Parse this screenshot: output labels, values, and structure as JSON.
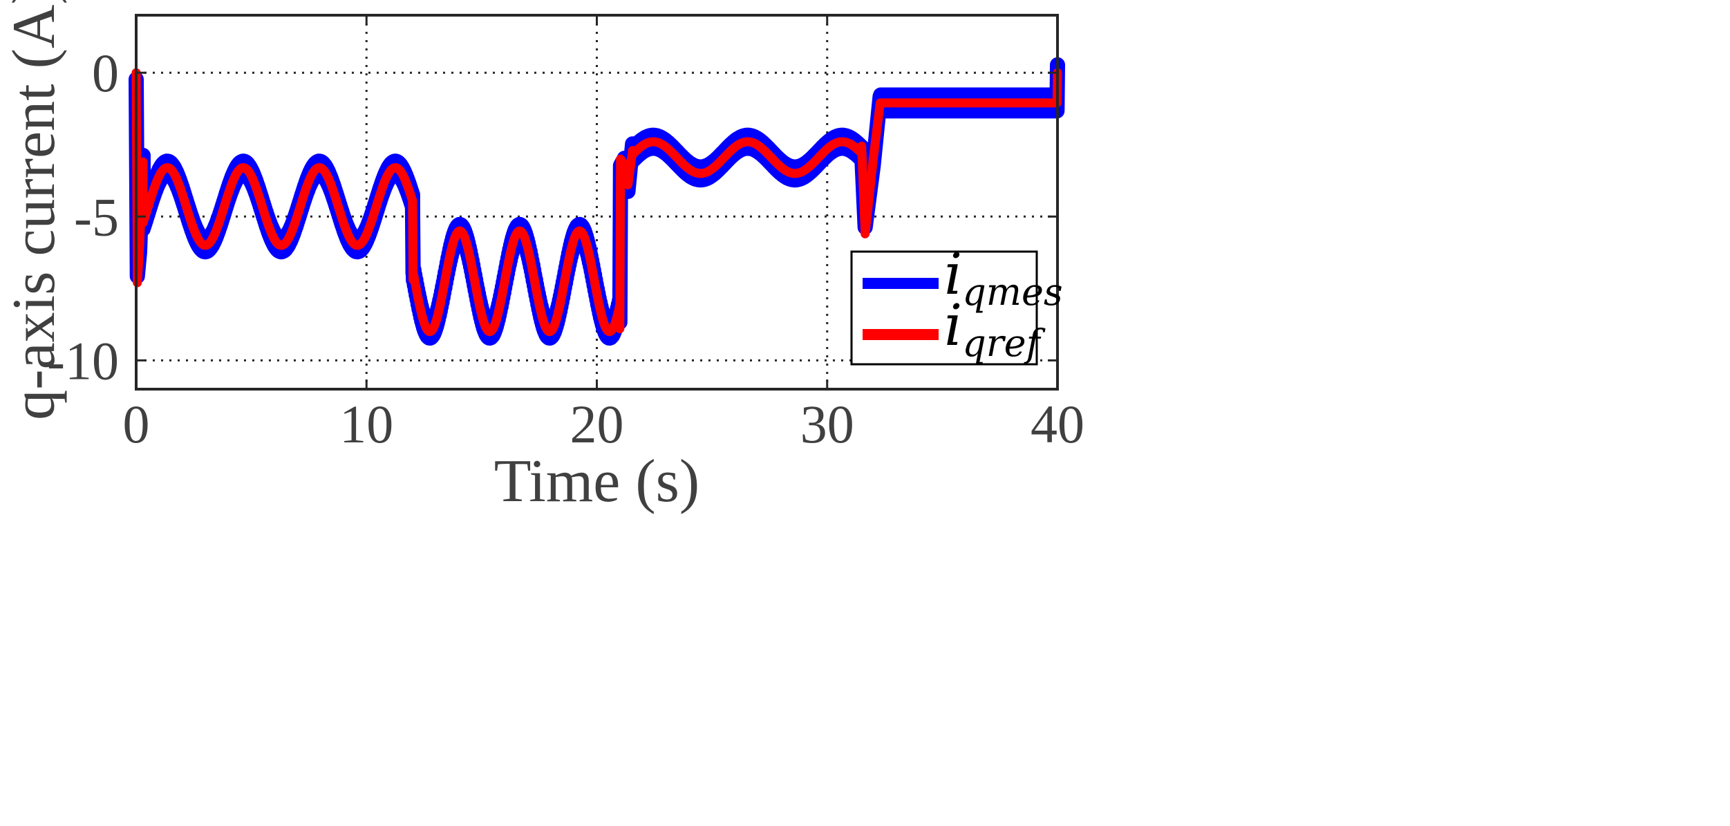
{
  "chart_data": {
    "type": "line",
    "title": "",
    "xlabel": "Time (s)",
    "ylabel": "q-axis current (A)",
    "xlim": [
      0,
      40
    ],
    "ylim": [
      -11,
      2
    ],
    "xticks": [
      0,
      10,
      20,
      30,
      40
    ],
    "xtick_labels": [
      "0",
      "10",
      "20",
      "30",
      "40"
    ],
    "yticks": [
      0,
      -5,
      -10
    ],
    "ytick_labels": [
      "0",
      "-5",
      "-10"
    ],
    "grid": true,
    "legend_position": "bottom-right",
    "series": [
      {
        "name": "i_qmes",
        "legend_base": "i",
        "legend_sub": "qmes",
        "color": "#0000ff",
        "ripple_band": 0.45,
        "ripple_band_final": 0.55
      },
      {
        "name": "i_qref",
        "legend_base": "i",
        "legend_sub": "qref",
        "color": "#ff0000"
      }
    ],
    "segments": [
      {
        "t_start": 0.3,
        "t_end": 12.0,
        "center": -4.65,
        "amplitude": 1.35,
        "period": 3.3,
        "phase_peak_t": 1.35
      },
      {
        "t_start": 12.0,
        "t_end": 21.0,
        "center": -7.25,
        "amplitude": 1.75,
        "period": 2.6,
        "phase_peak_t": 14.05
      },
      {
        "t_start": 21.0,
        "t_end": 31.5,
        "center": -2.95,
        "amplitude": 0.55,
        "period": 4.1,
        "phase_peak_t": 22.45
      },
      {
        "t_start": 32.3,
        "t_end": 40.0,
        "center": -1.05,
        "amplitude": 0.0,
        "period": 1.0,
        "phase_peak_t": 0.0
      }
    ],
    "transients": [
      {
        "t": 0.0,
        "y": 0.0
      },
      {
        "t": 0.05,
        "y": -7.3
      },
      {
        "t": 0.15,
        "y": -6.0
      },
      {
        "t": 0.3,
        "y": -3.1
      },
      {
        "t": 12.0,
        "y": -4.55
      },
      {
        "t": 12.02,
        "y": -7.2
      },
      {
        "t": 21.0,
        "y": -8.9
      },
      {
        "t": 21.03,
        "y": -3.0
      },
      {
        "t": 21.2,
        "y": -3.2
      },
      {
        "t": 21.35,
        "y": -3.9
      },
      {
        "t": 21.55,
        "y": -2.7
      },
      {
        "t": 31.5,
        "y": -2.55
      },
      {
        "t": 31.65,
        "y": -5.6
      },
      {
        "t": 32.0,
        "y": -3.0
      },
      {
        "t": 32.3,
        "y": -1.05
      }
    ]
  }
}
